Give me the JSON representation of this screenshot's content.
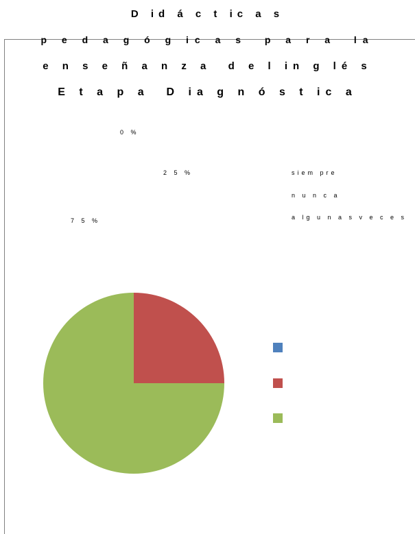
{
  "chart_data": {
    "type": "pie",
    "title_lines": [
      "D id á c t ic a s",
      "p e d a g ó g ic a s  p a r a  la",
      "e n s e ñ a n z a  d e l in g lé s",
      "E t a p a  D ia g n ó s t ic a"
    ],
    "slices": [
      {
        "label": "siem pre",
        "value": 0,
        "data_label": "0 %",
        "color": "#4f81bd"
      },
      {
        "label": "n u n c a",
        "value": 25,
        "data_label": "2 5 %",
        "color": "#c0504d"
      },
      {
        "label": "a lg u n a s v e c e s",
        "value": 75,
        "data_label": "7 5 %",
        "color": "#9bbb59"
      }
    ],
    "legend_position": "right"
  }
}
